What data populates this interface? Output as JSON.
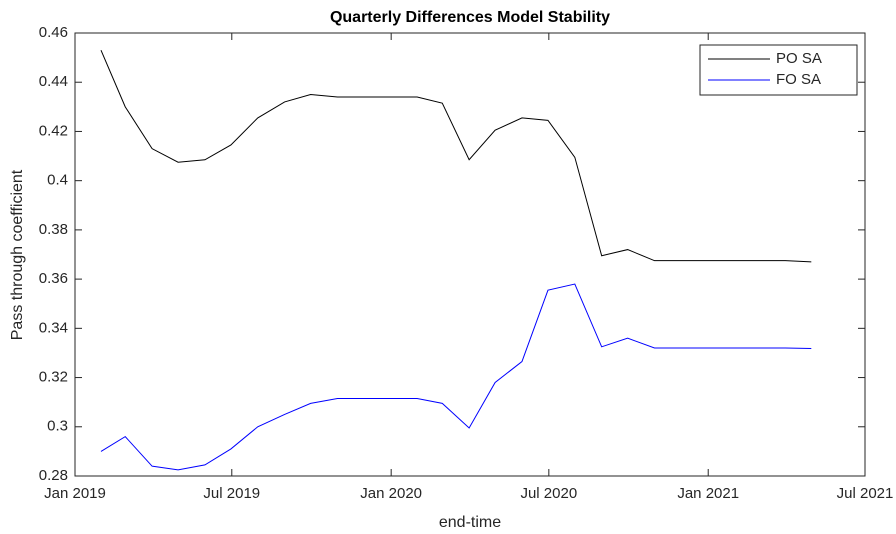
{
  "chart_data": {
    "type": "line",
    "title": "Quarterly Differences Model Stability",
    "xlabel": "end-time",
    "ylabel": "Pass through coefficient",
    "x": [
      "2019-01-31",
      "2019-02-28",
      "2019-03-31",
      "2019-04-30",
      "2019-05-31",
      "2019-06-30",
      "2019-07-31",
      "2019-08-31",
      "2019-09-30",
      "2019-10-31",
      "2019-11-30",
      "2019-12-31",
      "2020-01-31",
      "2020-02-29",
      "2020-03-31",
      "2020-04-30",
      "2020-05-31",
      "2020-06-30",
      "2020-07-31",
      "2020-08-31",
      "2020-09-30",
      "2020-10-31",
      "2020-11-30",
      "2020-12-31",
      "2021-01-31",
      "2021-02-28",
      "2021-03-31",
      "2021-04-30"
    ],
    "series": [
      {
        "name": "PO SA",
        "color": "#000000",
        "values": [
          0.453,
          0.43,
          0.413,
          0.4075,
          0.4085,
          0.4145,
          0.4255,
          0.432,
          0.435,
          0.434,
          0.434,
          0.434,
          0.434,
          0.4315,
          0.4085,
          0.4205,
          0.4255,
          0.4245,
          0.4095,
          0.3695,
          0.372,
          0.3675,
          0.3675,
          0.3675,
          0.3675,
          0.3675,
          0.3675,
          0.367
        ]
      },
      {
        "name": "FO SA",
        "color": "#0000ff",
        "values": [
          0.29,
          0.296,
          0.284,
          0.2825,
          0.2845,
          0.291,
          0.3,
          0.305,
          0.3095,
          0.3115,
          0.3115,
          0.3115,
          0.3115,
          0.3095,
          0.2995,
          0.318,
          0.3265,
          0.3555,
          0.358,
          0.3325,
          0.336,
          0.332,
          0.332,
          0.332,
          0.332,
          0.332,
          0.332,
          0.3318
        ]
      }
    ],
    "xlim": [
      "2019-01-01",
      "2021-07-01"
    ],
    "xticks": [
      {
        "value": "2019-01-01",
        "label": "Jan 2019"
      },
      {
        "value": "2019-07-01",
        "label": "Jul 2019"
      },
      {
        "value": "2020-01-01",
        "label": "Jan 2020"
      },
      {
        "value": "2020-07-01",
        "label": "Jul 2020"
      },
      {
        "value": "2021-01-01",
        "label": "Jan 2021"
      },
      {
        "value": "2021-07-01",
        "label": "Jul 2021"
      }
    ],
    "ylim": [
      0.28,
      0.46
    ],
    "yticks": [
      0.28,
      0.3,
      0.32,
      0.34,
      0.36,
      0.38,
      0.4,
      0.42,
      0.44,
      0.46
    ],
    "legend": "upper right"
  }
}
